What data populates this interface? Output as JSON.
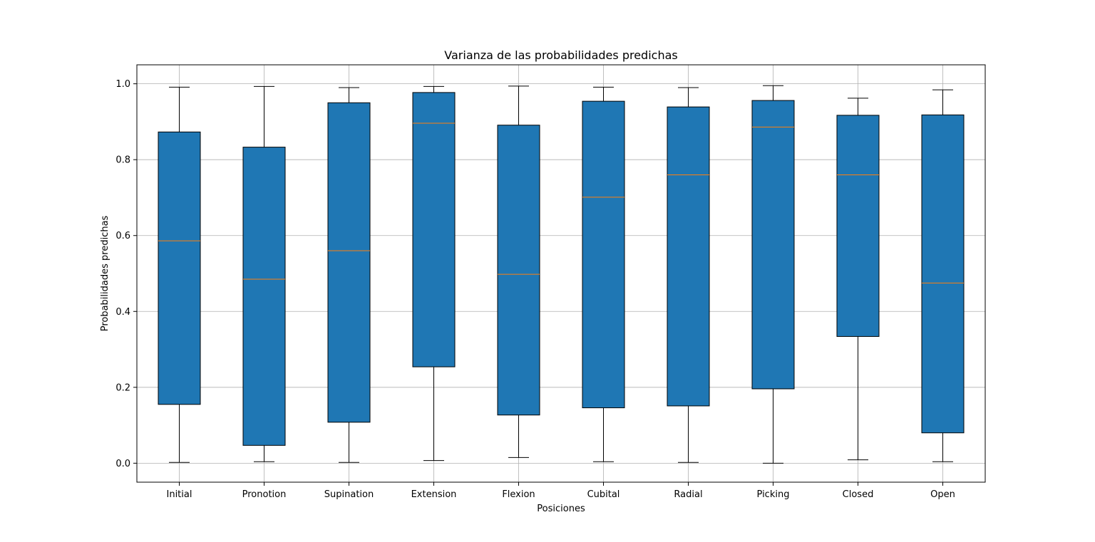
{
  "chart_data": {
    "type": "boxplot",
    "title": "Varianza de las probabilidades predichas",
    "xlabel": "Posiciones",
    "ylabel": "Probabilidades predichas",
    "ylim": [
      -0.05,
      1.05
    ],
    "yticks": [
      "0.0",
      "0.2",
      "0.4",
      "0.6",
      "0.8",
      "1.0"
    ],
    "grid": true,
    "colors": {
      "box": "#1f77b4",
      "median": "#ff7f0e",
      "edge": "#000000",
      "grid": "#b0b0b0"
    },
    "categories": [
      "Initial",
      "Pronotion",
      "Supination",
      "Extension",
      "Flexion",
      "Cubital",
      "Radial",
      "Picking",
      "Closed",
      "Open"
    ],
    "boxes": [
      {
        "whislo": 0.002,
        "q1": 0.155,
        "med": 0.586,
        "q3": 0.873,
        "whishi": 0.991
      },
      {
        "whislo": 0.004,
        "q1": 0.047,
        "med": 0.485,
        "q3": 0.833,
        "whishi": 0.993
      },
      {
        "whislo": 0.002,
        "q1": 0.108,
        "med": 0.56,
        "q3": 0.95,
        "whishi": 0.99
      },
      {
        "whislo": 0.007,
        "q1": 0.254,
        "med": 0.896,
        "q3": 0.977,
        "whishi": 0.993
      },
      {
        "whislo": 0.015,
        "q1": 0.127,
        "med": 0.498,
        "q3": 0.891,
        "whishi": 0.994
      },
      {
        "whislo": 0.004,
        "q1": 0.146,
        "med": 0.701,
        "q3": 0.954,
        "whishi": 0.991
      },
      {
        "whislo": 0.002,
        "q1": 0.151,
        "med": 0.76,
        "q3": 0.939,
        "whishi": 0.99
      },
      {
        "whislo": 0.0,
        "q1": 0.196,
        "med": 0.886,
        "q3": 0.956,
        "whishi": 0.995
      },
      {
        "whislo": 0.009,
        "q1": 0.334,
        "med": 0.76,
        "q3": 0.917,
        "whishi": 0.962
      },
      {
        "whislo": 0.004,
        "q1": 0.08,
        "med": 0.475,
        "q3": 0.918,
        "whishi": 0.984
      }
    ]
  }
}
